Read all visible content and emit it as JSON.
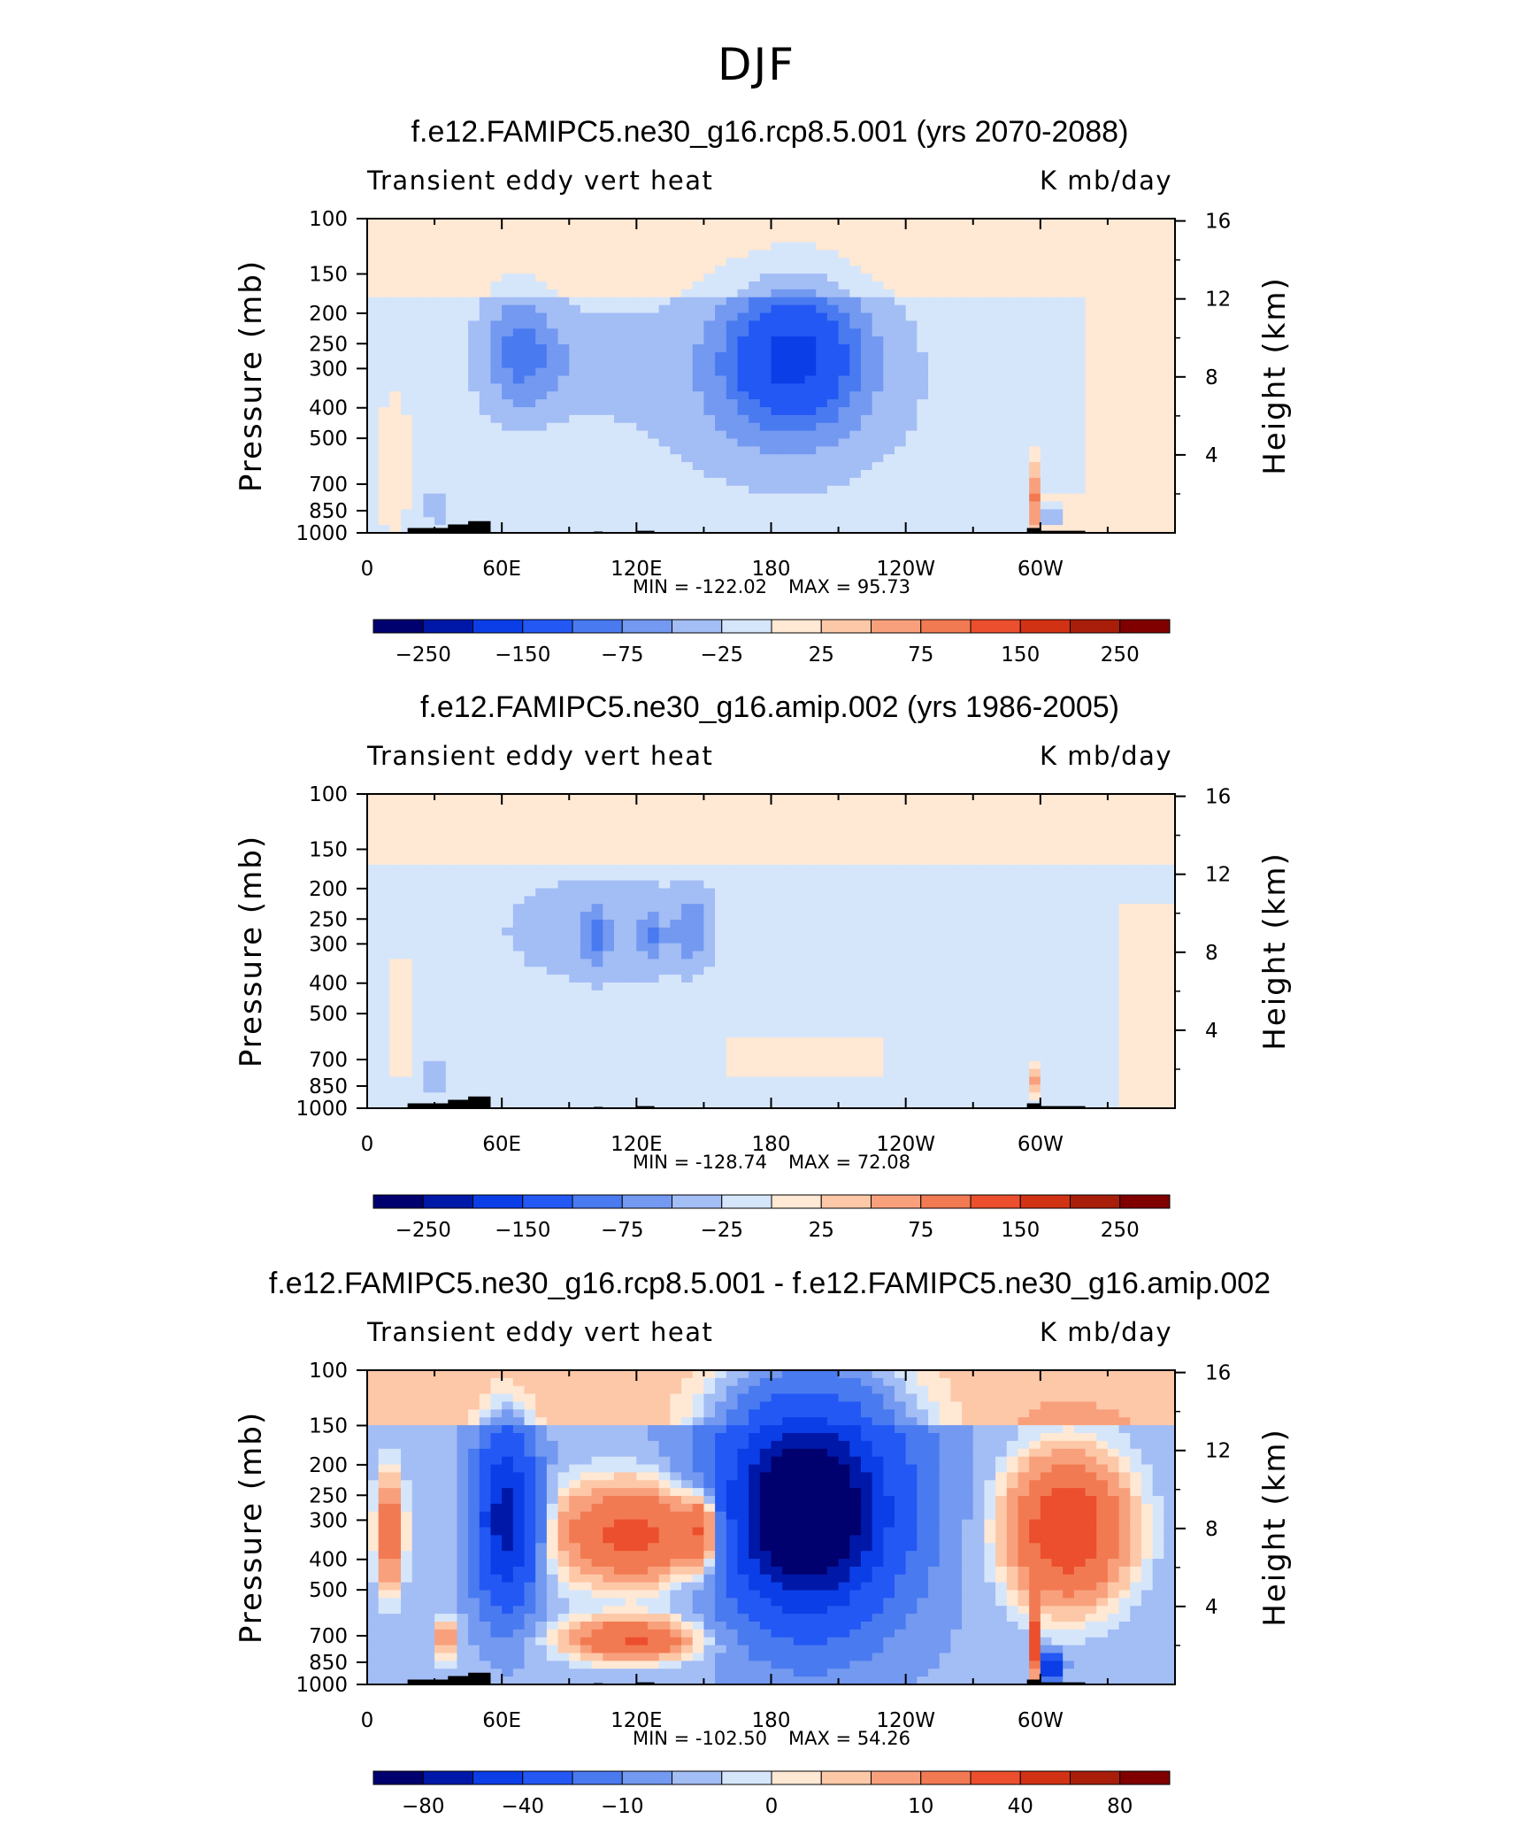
{
  "figure": {
    "title": "DJF"
  },
  "chart_data": [
    {
      "type": "heatmap",
      "title": "f.e12.FAMIPC5.ne30_g16.rcp8.5.001 (yrs 2070-2088)",
      "left_label": "Transient eddy vert heat",
      "right_label": "K mb/day",
      "ylabel": "Pressure (mb)",
      "ylabel_right": "Height (km)",
      "x_ticks": [
        "0",
        "60E",
        "120E",
        "180",
        "120W",
        "60W"
      ],
      "y_ticks": [
        "100",
        "150",
        "200",
        "250",
        "300",
        "400",
        "500",
        "700",
        "850",
        "1000"
      ],
      "y_right_ticks": [
        "16",
        "12",
        "8",
        "4"
      ],
      "y_scale": "log",
      "stats": {
        "min_label": "MIN = -122.02",
        "max_label": "MAX = 95.73",
        "min": -122.02,
        "max": 95.73
      },
      "colorbar_labels": [
        "-250",
        "-150",
        "-75",
        "-25",
        "25",
        "75",
        "150",
        "250"
      ],
      "colors": [
        "#00006e",
        "#0018a8",
        "#0b3ee6",
        "#2358f4",
        "#4a7af0",
        "#7399f0",
        "#a3bdf5",
        "#d6e6fa",
        "#ffe8d4",
        "#fdc8a8",
        "#f8a07c",
        "#f27a52",
        "#eb4f2e",
        "#d23214",
        "#a81e0a",
        "#800000"
      ],
      "features": [
        {
          "lon": 70,
          "p": 260,
          "value": -70
        },
        {
          "lon": 192,
          "p": 260,
          "value": -115
        },
        {
          "lon": 30,
          "p": 850,
          "value": -60
        },
        {
          "lon": 297,
          "p": 850,
          "value": 90
        }
      ]
    },
    {
      "type": "heatmap",
      "title": "f.e12.FAMIPC5.ne30_g16.amip.002 (yrs 1986-2005)",
      "left_label": "Transient eddy vert heat",
      "right_label": "K mb/day",
      "ylabel": "Pressure (mb)",
      "ylabel_right": "Height (km)",
      "x_ticks": [
        "0",
        "60E",
        "120E",
        "180",
        "120W",
        "60W"
      ],
      "y_ticks": [
        "100",
        "150",
        "200",
        "250",
        "300",
        "400",
        "500",
        "700",
        "850",
        "1000"
      ],
      "y_right_ticks": [
        "16",
        "12",
        "8",
        "4"
      ],
      "y_scale": "log",
      "stats": {
        "min_label": "MIN = -128.74",
        "max_label": "MAX = 72.08",
        "min": -128.74,
        "max": 72.08
      },
      "colorbar_labels": [
        "-250",
        "-150",
        "-75",
        "-25",
        "25",
        "75",
        "150",
        "250"
      ],
      "colors": [
        "#00006e",
        "#0018a8",
        "#0b3ee6",
        "#2358f4",
        "#4a7af0",
        "#7399f0",
        "#a3bdf5",
        "#d6e6fa",
        "#ffe8d4",
        "#fdc8a8",
        "#f8a07c",
        "#f27a52",
        "#eb4f2e",
        "#d23214",
        "#a81e0a",
        "#800000"
      ],
      "features": [
        {
          "lon": 100,
          "p": 270,
          "value": -45
        },
        {
          "lon": 145,
          "p": 270,
          "value": -50
        },
        {
          "lon": 30,
          "p": 820,
          "value": -70
        },
        {
          "lon": 297,
          "p": 840,
          "value": 60
        }
      ]
    },
    {
      "type": "heatmap",
      "title": "f.e12.FAMIPC5.ne30_g16.rcp8.5.001 - f.e12.FAMIPC5.ne30_g16.amip.002",
      "left_label": "Transient eddy vert heat",
      "right_label": "K mb/day",
      "ylabel": "Pressure (mb)",
      "ylabel_right": "Height (km)",
      "x_ticks": [
        "0",
        "60E",
        "120E",
        "180",
        "120W",
        "60W"
      ],
      "y_ticks": [
        "100",
        "150",
        "200",
        "250",
        "300",
        "400",
        "500",
        "700",
        "850",
        "1000"
      ],
      "y_right_ticks": [
        "16",
        "12",
        "8",
        "4"
      ],
      "y_scale": "log",
      "stats": {
        "min_label": "MIN = -102.50",
        "max_label": "MAX = 54.26",
        "min": -102.5,
        "max": 54.26
      },
      "colorbar_labels": [
        "-80",
        "-40",
        "-10",
        "0",
        "10",
        "40",
        "80"
      ],
      "colors": [
        "#00006e",
        "#0018a8",
        "#0b3ee6",
        "#2358f4",
        "#4a7af0",
        "#7399f0",
        "#a3bdf5",
        "#d6e6fa",
        "#ffe8d4",
        "#fdc8a8",
        "#f8a07c",
        "#f27a52",
        "#eb4f2e",
        "#d23214",
        "#a81e0a",
        "#800000"
      ],
      "features": [
        {
          "lon": 60,
          "p": 270,
          "value": -80
        },
        {
          "lon": 195,
          "p": 260,
          "value": -100
        },
        {
          "lon": 120,
          "p": 320,
          "value": 30
        },
        {
          "lon": 310,
          "p": 320,
          "value": 40
        },
        {
          "lon": 35,
          "p": 720,
          "value": 50
        }
      ]
    }
  ]
}
